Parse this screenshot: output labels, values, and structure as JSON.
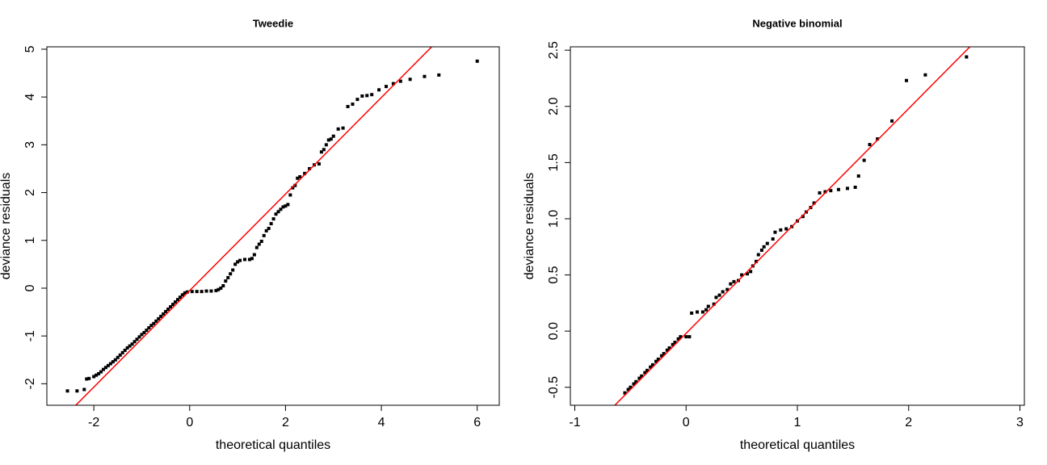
{
  "chart_data": [
    {
      "type": "scatter",
      "title": "Tweedie",
      "xlabel": "theoretical quantiles",
      "ylabel": "deviance residuals",
      "color": "#000000",
      "x": [
        -2.55,
        -2.35,
        -2.2,
        -2.15,
        -2.1,
        -2.0,
        -1.95,
        -1.9,
        -1.85,
        -1.8,
        -1.75,
        -1.7,
        -1.65,
        -1.6,
        -1.55,
        -1.5,
        -1.45,
        -1.4,
        -1.35,
        -1.3,
        -1.25,
        -1.2,
        -1.15,
        -1.1,
        -1.05,
        -1.0,
        -0.95,
        -0.9,
        -0.85,
        -0.8,
        -0.75,
        -0.7,
        -0.65,
        -0.6,
        -0.55,
        -0.5,
        -0.45,
        -0.4,
        -0.35,
        -0.3,
        -0.25,
        -0.2,
        -0.15,
        -0.1,
        -0.05,
        0.05,
        0.15,
        0.25,
        0.35,
        0.45,
        0.55,
        0.6,
        0.65,
        0.7,
        0.75,
        0.8,
        0.85,
        0.9,
        0.95,
        1.0,
        1.05,
        1.15,
        1.25,
        1.3,
        1.35,
        1.4,
        1.45,
        1.5,
        1.55,
        1.6,
        1.65,
        1.7,
        1.75,
        1.8,
        1.85,
        1.9,
        1.95,
        2.0,
        2.05,
        2.1,
        2.15,
        2.2,
        2.25,
        2.3,
        2.4,
        2.5,
        2.6,
        2.7,
        2.75,
        2.8,
        2.85,
        2.9,
        2.95,
        3.0,
        3.1,
        3.2,
        3.3,
        3.4,
        3.5,
        3.6,
        3.7,
        3.8,
        3.95,
        4.1,
        4.25,
        4.4,
        4.6,
        4.9,
        5.2,
        6.0
      ],
      "y": [
        -2.15,
        -2.15,
        -2.12,
        -1.9,
        -1.89,
        -1.85,
        -1.82,
        -1.79,
        -1.75,
        -1.7,
        -1.66,
        -1.62,
        -1.58,
        -1.54,
        -1.5,
        -1.45,
        -1.4,
        -1.35,
        -1.3,
        -1.25,
        -1.21,
        -1.17,
        -1.12,
        -1.07,
        -1.02,
        -0.97,
        -0.93,
        -0.88,
        -0.83,
        -0.78,
        -0.74,
        -0.69,
        -0.64,
        -0.59,
        -0.54,
        -0.49,
        -0.44,
        -0.39,
        -0.34,
        -0.29,
        -0.24,
        -0.19,
        -0.14,
        -0.1,
        -0.08,
        -0.07,
        -0.07,
        -0.07,
        -0.06,
        -0.06,
        -0.05,
        -0.03,
        0.0,
        0.05,
        0.15,
        0.22,
        0.3,
        0.38,
        0.5,
        0.55,
        0.58,
        0.6,
        0.6,
        0.62,
        0.7,
        0.85,
        0.92,
        0.98,
        1.1,
        1.2,
        1.25,
        1.35,
        1.45,
        1.55,
        1.6,
        1.65,
        1.7,
        1.72,
        1.75,
        1.95,
        2.1,
        2.15,
        2.3,
        2.33,
        2.4,
        2.5,
        2.58,
        2.6,
        2.85,
        2.9,
        3.0,
        3.1,
        3.12,
        3.18,
        3.33,
        3.35,
        3.8,
        3.85,
        3.95,
        4.02,
        4.03,
        4.05,
        4.15,
        4.22,
        4.28,
        4.33,
        4.37,
        4.43,
        4.46,
        4.75
      ],
      "line": {
        "slope": 1.01,
        "intercept": -0.05,
        "color": "#ff0000"
      },
      "xlim": [
        -2.98,
        6.46
      ],
      "ylim": [
        -2.45,
        5.05
      ],
      "xticks": [
        -2,
        0,
        2,
        4,
        6
      ],
      "yticks": [
        -2,
        -1,
        0,
        1,
        2,
        3,
        4,
        5
      ]
    },
    {
      "type": "scatter",
      "title": "Negative binomial",
      "xlabel": "theoretical quantiles",
      "ylabel": "deviance residuals",
      "color": "#000000",
      "x": [
        -0.55,
        -0.52,
        -0.5,
        -0.47,
        -0.45,
        -0.42,
        -0.4,
        -0.37,
        -0.35,
        -0.32,
        -0.3,
        -0.27,
        -0.25,
        -0.22,
        -0.2,
        -0.17,
        -0.15,
        -0.12,
        -0.1,
        -0.07,
        -0.05,
        0.0,
        0.03,
        0.05,
        0.1,
        0.15,
        0.18,
        0.2,
        0.25,
        0.27,
        0.3,
        0.33,
        0.37,
        0.4,
        0.43,
        0.47,
        0.5,
        0.55,
        0.58,
        0.6,
        0.63,
        0.65,
        0.68,
        0.7,
        0.73,
        0.78,
        0.8,
        0.85,
        0.9,
        0.95,
        1.0,
        1.05,
        1.08,
        1.12,
        1.15,
        1.2,
        1.25,
        1.3,
        1.37,
        1.45,
        1.52,
        1.55,
        1.6,
        1.65,
        1.72,
        1.85,
        1.98,
        2.15,
        2.52
      ],
      "y": [
        -0.55,
        -0.52,
        -0.5,
        -0.47,
        -0.45,
        -0.42,
        -0.4,
        -0.37,
        -0.35,
        -0.32,
        -0.3,
        -0.27,
        -0.25,
        -0.22,
        -0.2,
        -0.17,
        -0.15,
        -0.12,
        -0.1,
        -0.07,
        -0.05,
        -0.05,
        -0.05,
        0.16,
        0.17,
        0.17,
        0.19,
        0.22,
        0.24,
        0.3,
        0.32,
        0.35,
        0.37,
        0.42,
        0.44,
        0.45,
        0.5,
        0.51,
        0.53,
        0.58,
        0.62,
        0.68,
        0.72,
        0.75,
        0.78,
        0.82,
        0.88,
        0.9,
        0.91,
        0.93,
        0.98,
        1.02,
        1.06,
        1.1,
        1.14,
        1.23,
        1.24,
        1.25,
        1.26,
        1.27,
        1.28,
        1.38,
        1.52,
        1.66,
        1.71,
        1.87,
        2.23,
        2.28,
        2.44
      ],
      "line": {
        "slope": 1.0,
        "intercept": -0.02,
        "color": "#ff0000"
      },
      "xlim": [
        -1.04,
        3.04
      ],
      "ylim": [
        -0.66,
        2.53
      ],
      "xticks": [
        -1,
        0,
        1,
        2,
        3
      ],
      "yticks": [
        -0.5,
        {
          "value": 0,
          "label": "0.0"
        },
        0.5,
        {
          "value": 1,
          "label": "1.0"
        },
        1.5,
        {
          "value": 2,
          "label": "2.0"
        },
        2.5
      ]
    }
  ]
}
